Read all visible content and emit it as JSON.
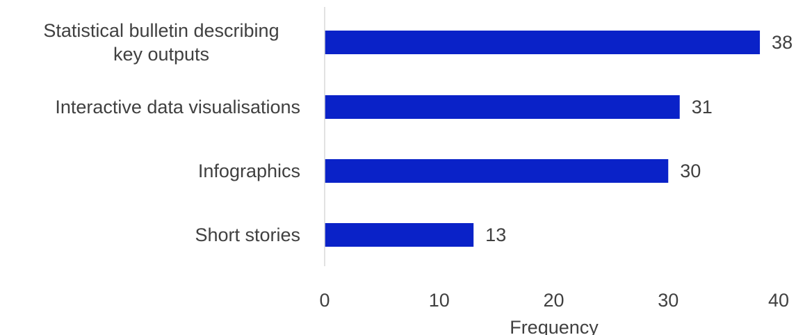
{
  "chart_data": {
    "type": "bar",
    "orientation": "horizontal",
    "categories": [
      [
        "Statistical bulletin describing",
        "key outputs"
      ],
      [
        "Interactive data visualisations"
      ],
      [
        "Infographics"
      ],
      [
        "Short stories"
      ]
    ],
    "values": [
      38,
      31,
      30,
      13
    ],
    "data_labels": [
      "38",
      "31",
      "30",
      "13"
    ],
    "x_ticks": [
      "0",
      "10",
      "20",
      "30",
      "40"
    ],
    "xlim": [
      0,
      40
    ],
    "xlabel": "Frequency",
    "ylabel": "",
    "title": "",
    "grid": false,
    "legend": "none",
    "bar_color": "#0a22c8",
    "axis_color": "#d9d9d9",
    "text_color": "#404040"
  }
}
